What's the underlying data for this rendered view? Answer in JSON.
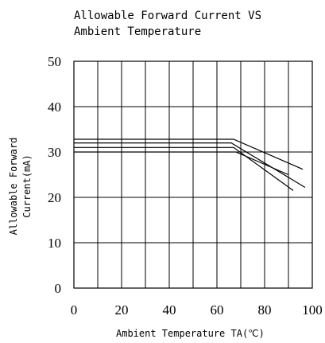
{
  "chart_data": {
    "type": "line",
    "title_lines": [
      "Allowable Forward Current VS",
      "Ambient Temperature"
    ],
    "xlabel": "Ambient Temperature TA(℃)",
    "ylabel_lines": [
      "Allowable Forward",
      "Current(mA)"
    ],
    "xlim": [
      0,
      100
    ],
    "ylim": [
      0,
      50
    ],
    "xticks": [
      0,
      20,
      40,
      60,
      80,
      100
    ],
    "yticks": [
      0,
      10,
      20,
      30,
      40,
      50
    ],
    "xtick_labels": [
      "0",
      "20",
      "40",
      "60",
      "80",
      "100"
    ],
    "ytick_labels": [
      "0",
      "10",
      "20",
      "30",
      "40",
      "50"
    ],
    "x_grid_step": 10,
    "grid": true,
    "line_color": "#000000",
    "series": [
      {
        "x": [
          0,
          67,
          96
        ],
        "y": [
          32.8,
          32.8,
          26.2
        ]
      },
      {
        "x": [
          0,
          66,
          97
        ],
        "y": [
          32.0,
          32.0,
          22.2
        ]
      },
      {
        "x": [
          0,
          67,
          92
        ],
        "y": [
          31.0,
          31.0,
          21.5
        ]
      },
      {
        "x": [
          0,
          68,
          90
        ],
        "y": [
          30.0,
          30.0,
          25.0
        ]
      }
    ]
  }
}
